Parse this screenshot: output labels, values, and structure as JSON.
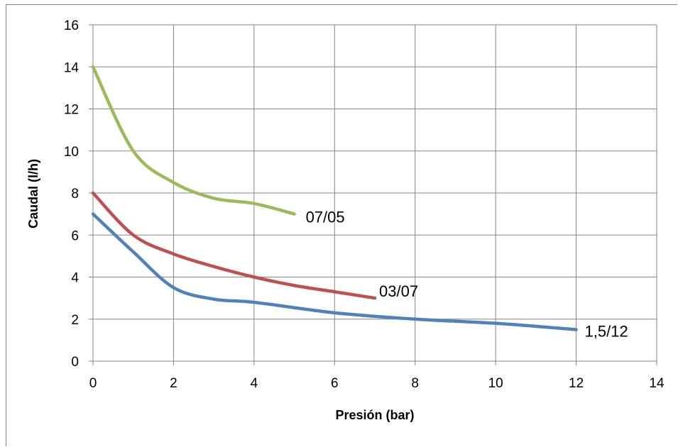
{
  "chart_data": {
    "type": "line",
    "title": "",
    "xlabel": "Presión (bar)",
    "ylabel": "Caudal (l/h)",
    "xlim": [
      0,
      14
    ],
    "ylim": [
      0,
      16
    ],
    "x_ticks": [
      "0",
      "2",
      "4",
      "6",
      "8",
      "10",
      "12",
      "14"
    ],
    "y_ticks": [
      "0",
      "2",
      "4",
      "6",
      "8",
      "10",
      "12",
      "14",
      "16"
    ],
    "grid": true,
    "legend": "none",
    "series": [
      {
        "name": "07/05",
        "color": "#9BBB59",
        "points": [
          [
            0,
            14
          ],
          [
            1,
            10
          ],
          [
            2,
            8.5
          ],
          [
            3,
            7.75
          ],
          [
            4,
            7.5
          ],
          [
            5,
            7
          ]
        ]
      },
      {
        "name": "03/07",
        "color": "#C0504D",
        "points": [
          [
            0,
            8
          ],
          [
            1,
            6
          ],
          [
            2,
            5.1
          ],
          [
            3,
            4.5
          ],
          [
            4,
            4
          ],
          [
            5,
            3.6
          ],
          [
            6,
            3.3
          ],
          [
            7,
            3
          ]
        ]
      },
      {
        "name": "1,5/12",
        "color": "#4F81BD",
        "points": [
          [
            0,
            7
          ],
          [
            1,
            5.2
          ],
          [
            2,
            3.5
          ],
          [
            3,
            2.95
          ],
          [
            4,
            2.8
          ],
          [
            6,
            2.3
          ],
          [
            8,
            2
          ],
          [
            10,
            1.8
          ],
          [
            12,
            1.5
          ]
        ]
      }
    ]
  }
}
